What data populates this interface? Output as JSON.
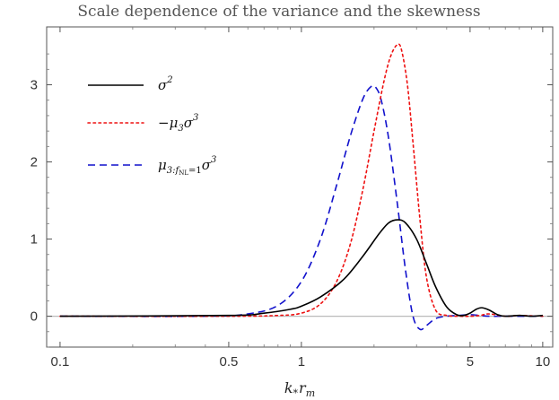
{
  "chart_data": {
    "type": "line",
    "title": "Scale dependence of the variance and the skewness",
    "xlabel": "k*r_m",
    "xlabel_parts": {
      "main": "k",
      "sub1": "*",
      "main2": "r",
      "sub2": "m"
    },
    "ylabel": "",
    "xscale": "log",
    "xlim": [
      0.088,
      11
    ],
    "ylim": [
      -0.4,
      3.75
    ],
    "xticks": [
      {
        "value": 0.1,
        "label": "0.1"
      },
      {
        "value": 0.5,
        "label": "0.5"
      },
      {
        "value": 1,
        "label": "1"
      },
      {
        "value": 5,
        "label": "5"
      },
      {
        "value": 10,
        "label": "10"
      }
    ],
    "yticks": [
      {
        "value": 0,
        "label": "0"
      },
      {
        "value": 1,
        "label": "1"
      },
      {
        "value": 2,
        "label": "2"
      },
      {
        "value": 3,
        "label": "3"
      }
    ],
    "zero_line": true,
    "legend_position": "top-left",
    "series": [
      {
        "name": "sigma^2",
        "legend": {
          "base": "σ",
          "sup": "2",
          "prefix": "",
          "sub": "",
          "tail": "",
          "tail_sup": ""
        },
        "color": "#000000",
        "style": "solid",
        "x": [
          0.1,
          0.5,
          0.7,
          0.9,
          1.0,
          1.2,
          1.5,
          1.8,
          2.1,
          2.3,
          2.5,
          2.7,
          3.0,
          3.3,
          3.6,
          4.0,
          4.4,
          4.7,
          5.0,
          5.3,
          5.6,
          6.0,
          6.5,
          7.0,
          8.0,
          9.0,
          10.0
        ],
        "y": [
          0,
          0.01,
          0.04,
          0.09,
          0.13,
          0.25,
          0.48,
          0.78,
          1.07,
          1.21,
          1.25,
          1.21,
          1.0,
          0.68,
          0.38,
          0.12,
          0.02,
          0.01,
          0.04,
          0.09,
          0.11,
          0.08,
          0.02,
          0.0,
          0.01,
          0.0,
          0.01
        ]
      },
      {
        "name": "-mu_3 sigma^3",
        "legend": {
          "base": "σ",
          "sup": "3",
          "prefix": "−μ",
          "sub": "3",
          "tail": "",
          "tail_sup": ""
        },
        "color": "#ee1111",
        "style": "dotted",
        "x": [
          0.1,
          0.5,
          0.8,
          1.0,
          1.2,
          1.4,
          1.6,
          1.8,
          2.0,
          2.2,
          2.35,
          2.5,
          2.6,
          2.75,
          2.9,
          3.1,
          3.3,
          3.6,
          4.0,
          4.5,
          5.0,
          5.5,
          6.0,
          7.0,
          8.0,
          10.0
        ],
        "y": [
          0,
          0.0,
          0.01,
          0.04,
          0.16,
          0.45,
          0.95,
          1.65,
          2.4,
          3.05,
          3.38,
          3.52,
          3.45,
          3.0,
          2.25,
          1.25,
          0.5,
          0.08,
          0.01,
          0.0,
          0.0,
          0.01,
          0.03,
          0.0,
          0.01,
          0.0
        ]
      },
      {
        "name": "mu_{3:f_NL=1} sigma^3",
        "legend": {
          "base": "σ",
          "sup": "3",
          "prefix": "μ",
          "sub": "3:",
          "sub_f": "f",
          "sub_nl": "NL",
          "sub_eq": "=1"
        },
        "color": "#1111cc",
        "style": "dashed",
        "x": [
          0.1,
          0.4,
          0.6,
          0.8,
          1.0,
          1.2,
          1.4,
          1.6,
          1.8,
          1.95,
          2.05,
          2.15,
          2.3,
          2.5,
          2.7,
          2.9,
          3.1,
          3.3,
          3.6,
          4.0,
          4.5,
          5.0,
          5.5,
          6.0,
          7.0,
          8.0,
          10.0
        ],
        "y": [
          0,
          0.0,
          0.03,
          0.14,
          0.45,
          1.0,
          1.7,
          2.35,
          2.82,
          2.98,
          2.95,
          2.78,
          2.3,
          1.45,
          0.6,
          0.0,
          -0.17,
          -0.12,
          -0.03,
          0.0,
          0.01,
          0.02,
          0.01,
          0.0,
          0.0,
          0.0,
          0.0
        ]
      }
    ]
  }
}
